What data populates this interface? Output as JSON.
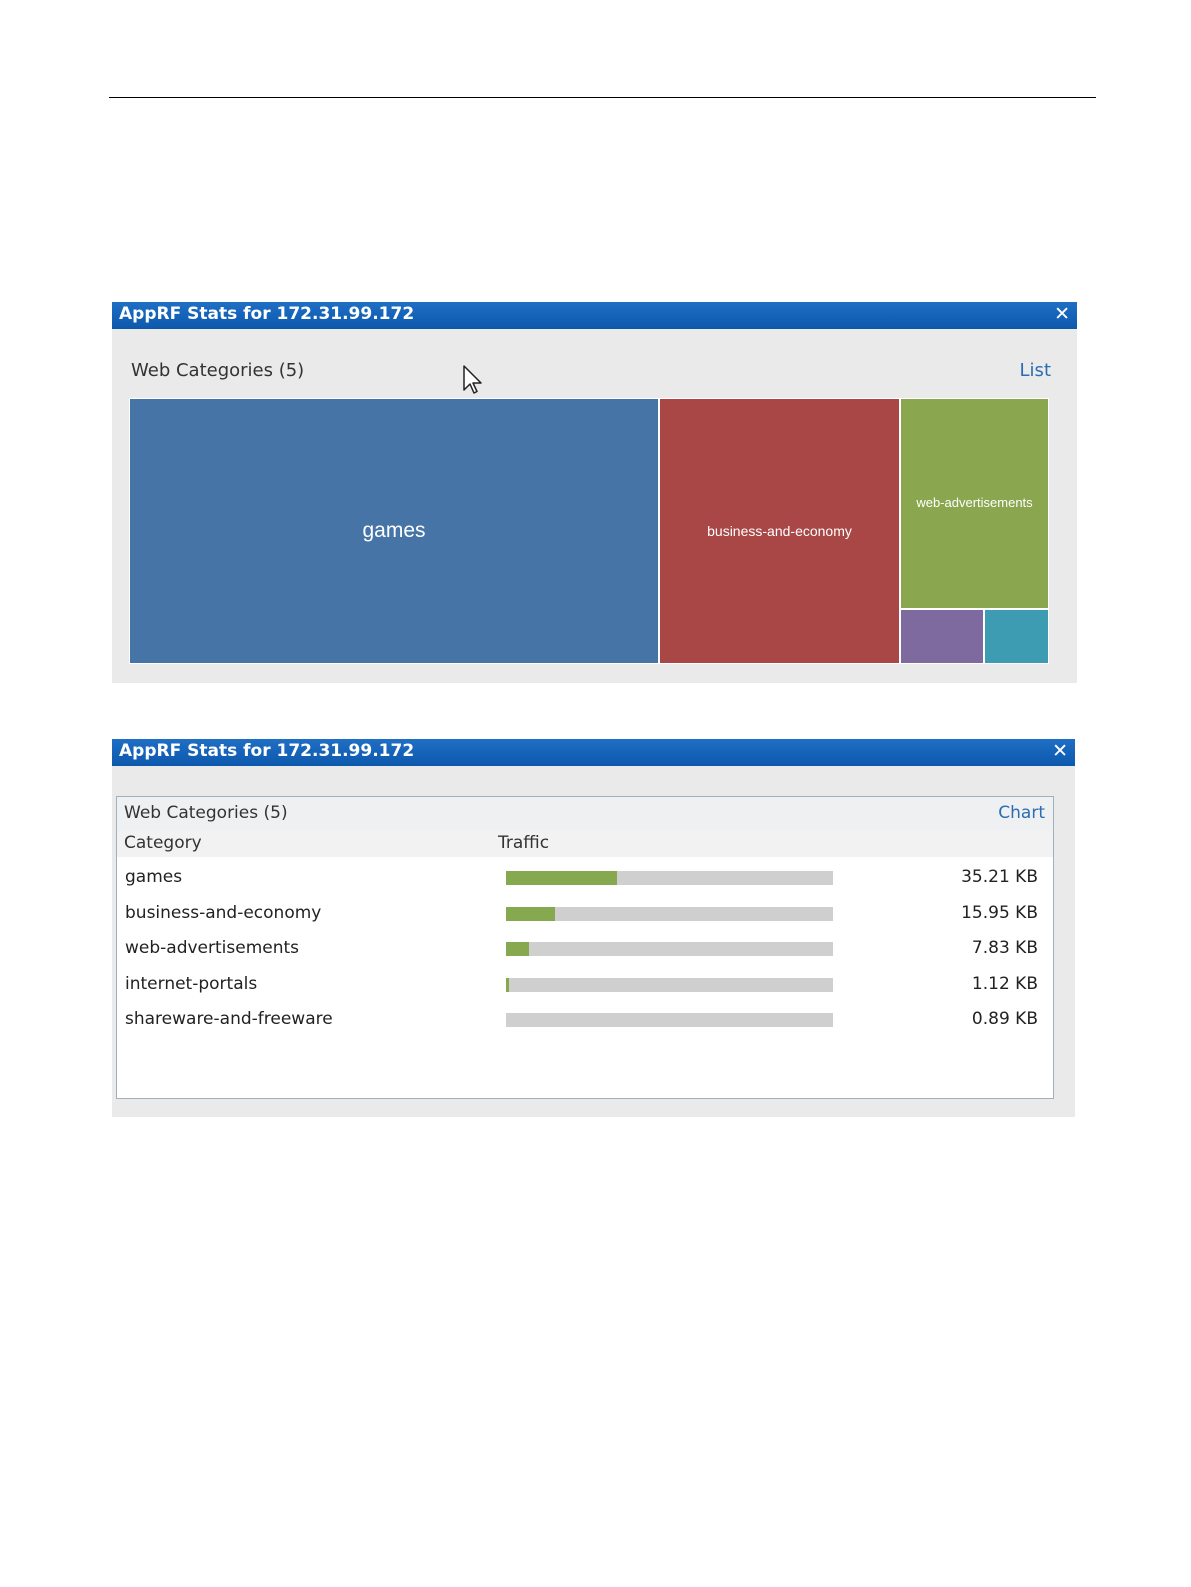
{
  "chart_panel": {
    "title": "AppRF Stats for 172.31.99.172",
    "close_glyph": "✕",
    "section_title": "Web Categories (5)",
    "toggle_label": "List",
    "cells": [
      {
        "label": "games",
        "color": "#4674a7"
      },
      {
        "label": "business-and-economy",
        "color": "#a84745"
      },
      {
        "label": "web-advertisements",
        "color": "#8aa64f"
      },
      {
        "label": "",
        "color": "#7f6aa0"
      },
      {
        "label": "",
        "color": "#3d9bb2"
      }
    ]
  },
  "list_panel": {
    "title": "AppRF Stats for 172.31.99.172",
    "close_glyph": "✕",
    "section_title": "Web Categories (5)",
    "toggle_label": "Chart",
    "columns": {
      "category": "Category",
      "traffic": "Traffic"
    },
    "rows": [
      {
        "name": "games",
        "value": "35.21 KB",
        "fraction": 0.34
      },
      {
        "name": "business-and-economy",
        "value": "15.95 KB",
        "fraction": 0.15
      },
      {
        "name": "web-advertisements",
        "value": "7.83 KB",
        "fraction": 0.07
      },
      {
        "name": "internet-portals",
        "value": "1.12 KB",
        "fraction": 0.01
      },
      {
        "name": "shareware-and-freeware",
        "value": "0.89 KB",
        "fraction": 0.0
      }
    ]
  },
  "colors": {
    "titlebar": "#1565c0",
    "bar_fill": "#86a84f",
    "bar_track": "#cfcfcf",
    "link": "#2a6db3"
  }
}
